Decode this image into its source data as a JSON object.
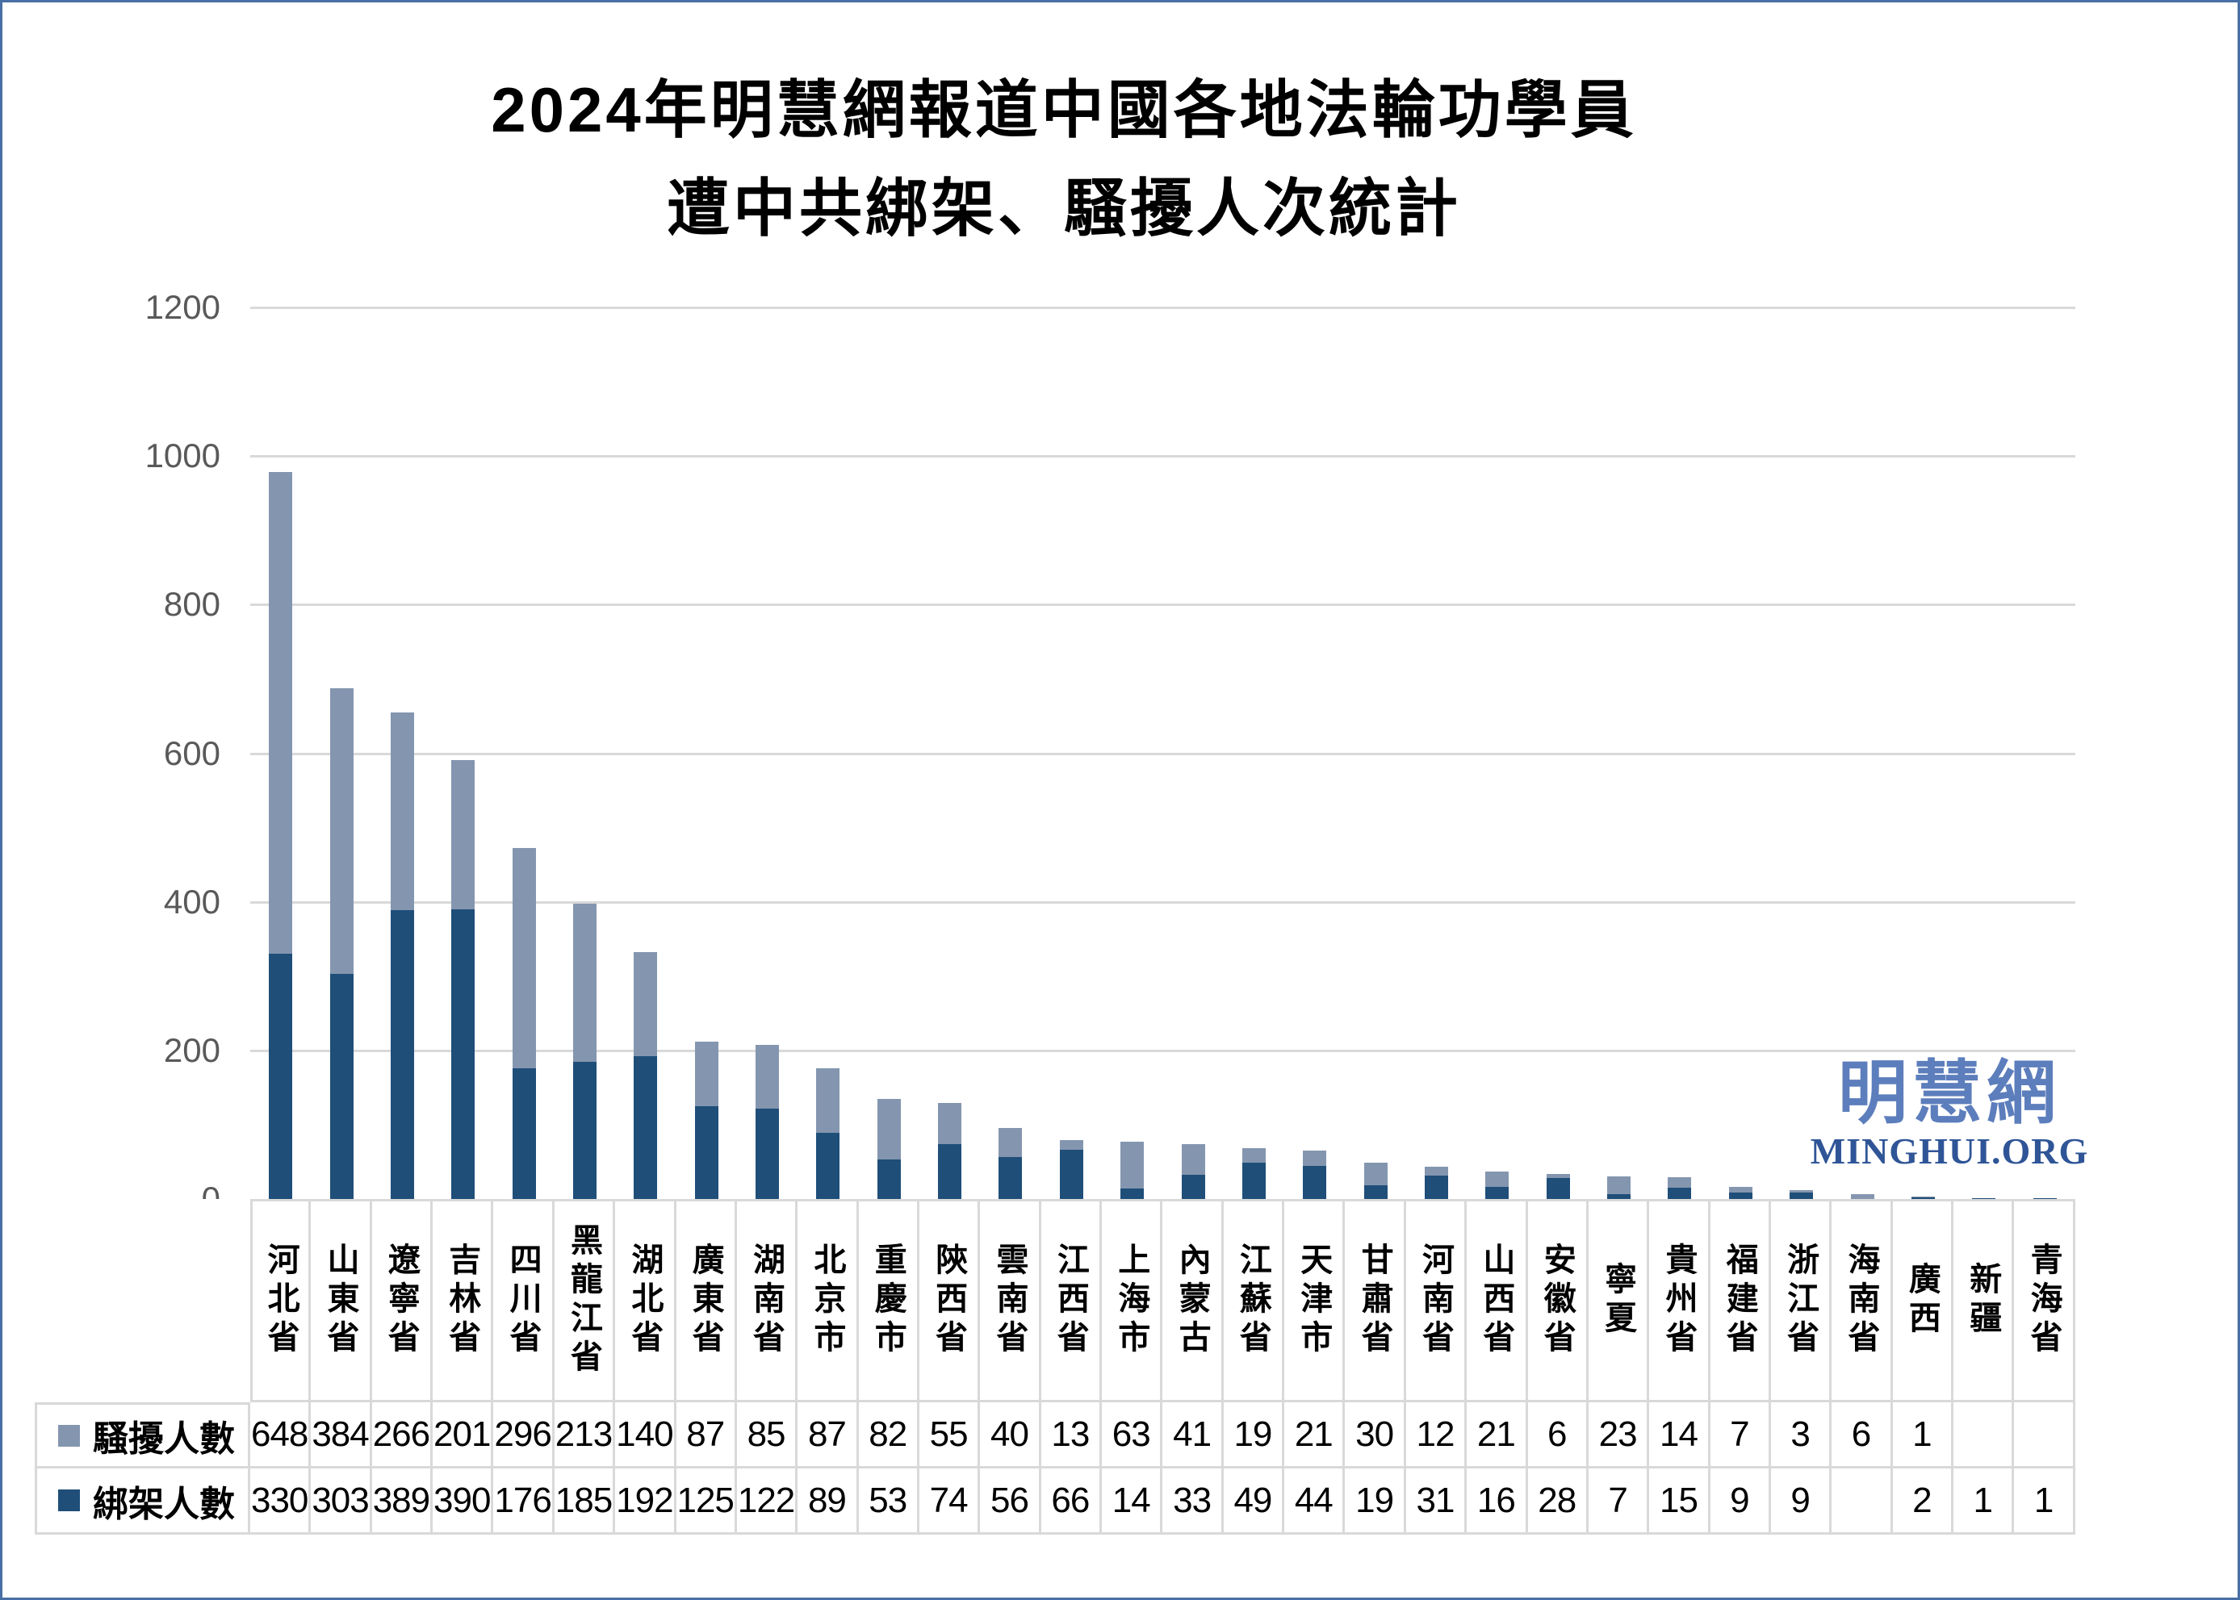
{
  "title": {
    "line1": "2024年明慧網報道中國各地法輪功學員",
    "line2": "遭中共綁架、騷擾人次統計"
  },
  "watermark": {
    "cjk": "明慧網",
    "latin": "MINGHUI.ORG",
    "cjk_color": "#5d7ebc",
    "latin_color": "#2f5597"
  },
  "colors": {
    "frame_border": "#4a6ea6",
    "gridline": "#d9d9d9",
    "axis_label": "#595959",
    "harassment_series": "#8496af",
    "kidnapping_series": "#1f4e79"
  },
  "chart_data": {
    "type": "bar",
    "stacked": true,
    "title": "2024年明慧網報道中國各地法輪功學員遭中共綁架、騷擾人次統計",
    "xlabel": "",
    "ylabel": "",
    "ylim": [
      0,
      1200
    ],
    "yticks": [
      0,
      200,
      400,
      600,
      800,
      1000,
      1200
    ],
    "grid": true,
    "legend_position": "table-left",
    "categories": [
      "河北省",
      "山東省",
      "遼寧省",
      "吉林省",
      "四川省",
      "黑龍江省",
      "湖北省",
      "廣東省",
      "湖南省",
      "北京市",
      "重慶市",
      "陝西省",
      "雲南省",
      "江西省",
      "上海市",
      "內蒙古",
      "江蘇省",
      "天津市",
      "甘肅省",
      "河南省",
      "山西省",
      "安徽省",
      "寧夏",
      "貴州省",
      "福建省",
      "浙江省",
      "海南省",
      "廣西",
      "新疆",
      "青海省"
    ],
    "series": [
      {
        "name": "騷擾人數",
        "color": "#8496af",
        "stack_order": "top",
        "values": [
          648,
          384,
          266,
          201,
          296,
          213,
          140,
          87,
          85,
          87,
          82,
          55,
          40,
          13,
          63,
          41,
          19,
          21,
          30,
          12,
          21,
          6,
          23,
          14,
          7,
          3,
          6,
          1,
          null,
          null
        ]
      },
      {
        "name": "綁架人數",
        "color": "#1f4e79",
        "stack_order": "bottom",
        "values": [
          330,
          303,
          389,
          390,
          176,
          185,
          192,
          125,
          122,
          89,
          53,
          74,
          56,
          66,
          14,
          33,
          49,
          44,
          19,
          31,
          16,
          28,
          7,
          15,
          9,
          9,
          null,
          2,
          1,
          1
        ]
      }
    ]
  }
}
